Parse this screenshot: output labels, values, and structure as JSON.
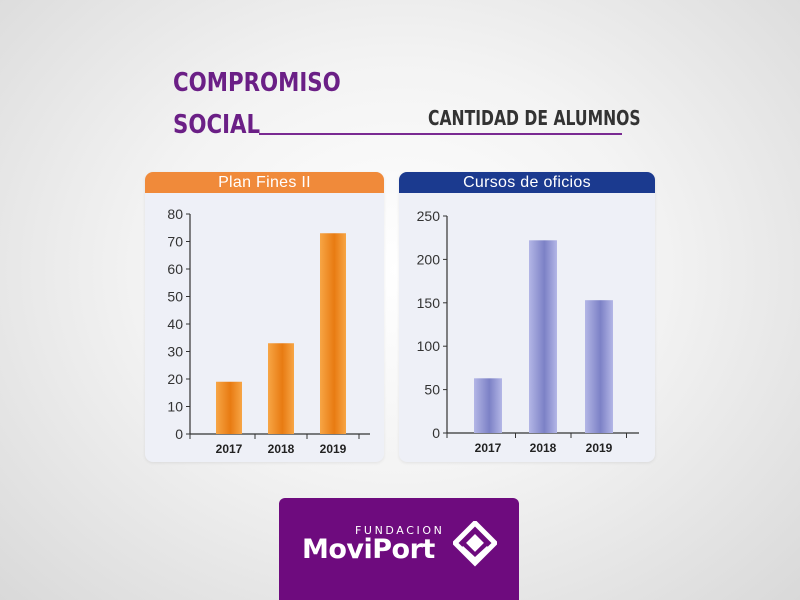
{
  "heading": {
    "line1": "COMPROMISO",
    "line2": "SOCIAL"
  },
  "subtitle": "CANTIDAD DE ALUMNOS",
  "colors": {
    "purple": "#6b1f86",
    "orange": "#f08a3a",
    "navy": "#1b3a8f",
    "lavender": "#8f93cf"
  },
  "chart_data": [
    {
      "type": "bar",
      "title": "Plan Fines II",
      "categories": [
        "2017",
        "2018",
        "2019"
      ],
      "values": [
        19,
        33,
        73
      ],
      "ylim": [
        0,
        80
      ],
      "yticks": [
        "0",
        "10",
        "20",
        "30",
        "40",
        "50",
        "60",
        "70",
        "80"
      ],
      "grid": false
    },
    {
      "type": "bar",
      "title": "Cursos de oficios",
      "categories": [
        "2017",
        "2018",
        "2019"
      ],
      "values": [
        63,
        222,
        153
      ],
      "ylim": [
        0,
        250
      ],
      "yticks": [
        "0",
        "50",
        "100",
        "150",
        "200",
        "250"
      ],
      "grid": false
    }
  ],
  "logo": {
    "small": "FUNDACION",
    "big": "MoviPort",
    "icon": "moviport-diamond-icon"
  }
}
